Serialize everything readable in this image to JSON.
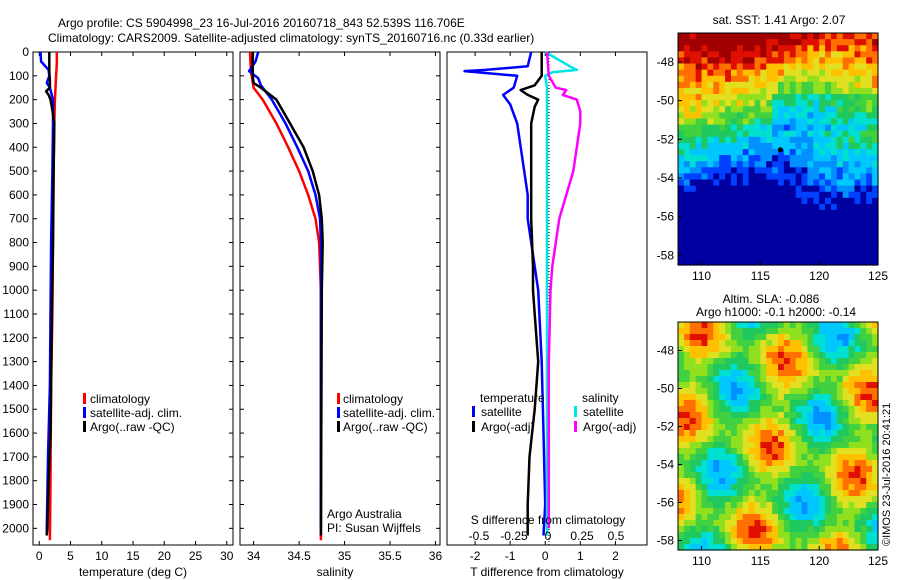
{
  "header": {
    "line1": "Argo profile: CS 5904998_23 16-Jul-2016 20160718_843 52.539S 116.706E",
    "line2": "Climatology: CARS2009. Satellite-adjusted climatology: synTS_20160716.nc (0.33d earlier)"
  },
  "credit": "©IMOS 23-Jul-2016 20:41:21",
  "colors": {
    "climatology": "#ff0000",
    "satellite": "#0000ff",
    "argo": "#000000",
    "cyan": "#00e5e5",
    "magenta": "#ff00ff"
  },
  "chart_data": [
    {
      "type": "line",
      "id": "temperature",
      "xlabel": "temperature (deg C)",
      "xlim": [
        -1,
        31
      ],
      "ylim": [
        2070,
        0
      ],
      "xticks": [
        "0",
        "5",
        "10",
        "15",
        "20",
        "25",
        "30"
      ],
      "xtick_values": [
        0,
        5,
        10,
        15,
        20,
        25,
        30
      ],
      "yticks": [
        "0",
        "100",
        "200",
        "300",
        "400",
        "500",
        "600",
        "700",
        "800",
        "900",
        "1000",
        "1100",
        "1200",
        "1300",
        "1400",
        "1500",
        "1600",
        "1700",
        "1800",
        "1900",
        "2000"
      ],
      "legend": [
        "climatology",
        "satellite-adj. clim.",
        "Argo(..raw -QC)"
      ],
      "legend_placement": "center",
      "series": [
        {
          "name": "climatology",
          "color": "#ff0000",
          "x": [
            2.8,
            2.8,
            2.7,
            2.6,
            2.5,
            2.4,
            2.3,
            2.2,
            2.1,
            1.9,
            1.8,
            1.7
          ],
          "y": [
            0,
            50,
            100,
            150,
            200,
            300,
            500,
            800,
            1100,
            1400,
            1800,
            2050
          ]
        },
        {
          "name": "satellite-adj. clim.",
          "color": "#0000ff",
          "x": [
            0.2,
            0.3,
            1.5,
            1.6,
            1.2,
            1.7,
            2.2,
            2.2,
            2.1,
            1.9,
            1.8,
            1.7,
            1.4,
            1.2,
            1.2
          ],
          "y": [
            0,
            40,
            75,
            100,
            130,
            150,
            200,
            300,
            500,
            800,
            1100,
            1400,
            1700,
            2000,
            2030
          ]
        },
        {
          "name": "Argo(..raw -QC)",
          "color": "#000000",
          "x": [
            1.6,
            1.6,
            1.7,
            1.7,
            1.1,
            1.5,
            1.8,
            2.0,
            2.2,
            2.4,
            2.3,
            2.2,
            2.0,
            1.9,
            1.8,
            1.5,
            1.3,
            1.2
          ],
          "y": [
            0,
            80,
            120,
            150,
            165,
            180,
            200,
            230,
            260,
            300,
            500,
            800,
            1100,
            1400,
            1600,
            1800,
            2000,
            2030
          ]
        }
      ]
    },
    {
      "type": "line",
      "id": "salinity",
      "xlabel": "salinity",
      "xlim": [
        33.85,
        36.05
      ],
      "ylim": [
        2070,
        0
      ],
      "xticks": [
        "34",
        "34.5",
        "35",
        "35.5",
        "36"
      ],
      "xtick_values": [
        34,
        34.5,
        35,
        35.5,
        36
      ],
      "legend": [
        "climatology",
        "satellite-adj. clim.",
        "Argo(..raw -QC)"
      ],
      "legend_placement": "bottom-right",
      "annotation": [
        "Argo Australia",
        "PI: Susan Wijffels"
      ],
      "series": [
        {
          "name": "climatology",
          "color": "#ff0000",
          "x": [
            33.96,
            33.97,
            34.0,
            34.1,
            34.25,
            34.38,
            34.5,
            34.6,
            34.68,
            34.72,
            34.74,
            34.74,
            34.74
          ],
          "y": [
            0,
            80,
            150,
            200,
            300,
            400,
            500,
            600,
            700,
            800,
            1000,
            1500,
            2050
          ]
        },
        {
          "name": "satellite-adj. clim.",
          "color": "#0000ff",
          "x": [
            34.05,
            34.02,
            33.95,
            34.05,
            34.08,
            34.2,
            34.35,
            34.48,
            34.6,
            34.68,
            34.73,
            34.74,
            34.74,
            34.74
          ],
          "y": [
            0,
            40,
            80,
            110,
            140,
            200,
            300,
            400,
            500,
            600,
            700,
            800,
            1000,
            2000
          ]
        },
        {
          "name": "Argo(..raw -QC)",
          "color": "#000000",
          "x": [
            33.99,
            33.99,
            34.0,
            34.08,
            34.25,
            34.4,
            34.55,
            34.65,
            34.72,
            34.75,
            34.76,
            34.75,
            34.74
          ],
          "y": [
            0,
            100,
            130,
            150,
            200,
            300,
            400,
            500,
            600,
            700,
            800,
            1000,
            2030
          ]
        }
      ]
    },
    {
      "type": "line",
      "id": "difference",
      "xlabel": "T difference from climatology",
      "xlim": [
        -2.8,
        2.9
      ],
      "ylim": [
        2070,
        0
      ],
      "xticks": [
        "-2",
        "-1",
        "0",
        "1",
        "2"
      ],
      "xtick_values": [
        -2,
        -1,
        0,
        1,
        2
      ],
      "top_axis_label": "S difference from climatology",
      "top_xticks": [
        "-0.5",
        "-0.25",
        "0",
        "0.25",
        "0.5"
      ],
      "legend_temperature_title": "temperature",
      "legend_salinity_title": "salinity",
      "legend_temperature": [
        "satellite",
        "Argo(-adj)"
      ],
      "legend_salinity": [
        "satellite",
        "Argo(-adj)"
      ],
      "series": [
        {
          "name": "satellite",
          "color": "#0000ff",
          "x": [
            -0.4,
            -0.5,
            -1.7,
            -2.3,
            -0.8,
            -0.9,
            -1.2,
            -1.0,
            -0.8,
            -0.7,
            -0.6,
            -0.5,
            -0.5,
            -0.4,
            -0.2,
            -0.1,
            -0.05,
            0.0,
            -0.05
          ],
          "y": [
            0,
            60,
            75,
            80,
            100,
            150,
            180,
            220,
            300,
            400,
            500,
            600,
            700,
            800,
            1000,
            1300,
            1600,
            1900,
            2030
          ]
        },
        {
          "name": "Argo(-adj)",
          "color": "#000000",
          "x": [
            -0.1,
            -0.1,
            -0.3,
            -0.7,
            -0.5,
            -0.2,
            -0.3,
            -0.4,
            -0.4,
            -0.4,
            -0.35,
            -0.35,
            -0.3,
            -0.2,
            -0.3,
            -0.45,
            -0.5,
            -0.5
          ],
          "y": [
            0,
            100,
            140,
            160,
            180,
            200,
            230,
            300,
            500,
            700,
            900,
            1000,
            1100,
            1300,
            1500,
            1700,
            1900,
            2030
          ]
        },
        {
          "name": "satellite",
          "color": "#00e5e5",
          "x": [
            0.0,
            0.7,
            0.9,
            0.2,
            0.0,
            0.05,
            0.05,
            0.05,
            0.05,
            0.05,
            0.05,
            0.05
          ],
          "y": [
            0,
            60,
            75,
            85,
            100,
            150,
            300,
            600,
            1000,
            1400,
            1800,
            2030
          ]
        },
        {
          "name": "Argo(-adj)",
          "color": "#ff00ff",
          "x": [
            0.05,
            0.1,
            0.3,
            0.6,
            0.5,
            0.9,
            1.0,
            1.0,
            0.9,
            0.8,
            0.6,
            0.4,
            0.3,
            0.2,
            0.15,
            0.1,
            0.1
          ],
          "y": [
            0,
            100,
            150,
            160,
            180,
            200,
            250,
            300,
            400,
            500,
            600,
            700,
            800,
            900,
            1000,
            1300,
            2000
          ]
        }
      ]
    },
    {
      "type": "heatmap",
      "id": "sst-map",
      "title": "sat. SST: 1.41  Argo: 2.07",
      "xlim": [
        108,
        125
      ],
      "ylim": [
        -58.5,
        -46.5
      ],
      "xticks": [
        "110",
        "115",
        "120",
        "125"
      ],
      "xtick_values": [
        110,
        115,
        120,
        125
      ],
      "yticks": [
        "-48",
        "-50",
        "-52",
        "-54",
        "-56",
        "-58"
      ],
      "ytick_values": [
        -48,
        -50,
        -52,
        -54,
        -56,
        -58
      ],
      "marker": {
        "lon": 116.706,
        "lat": -52.539
      }
    },
    {
      "type": "heatmap",
      "id": "sla-map",
      "title": "Altim. SLA: -0.086",
      "subtitle": "Argo h1000: -0.1  h2000: -0.14",
      "xlim": [
        108,
        125
      ],
      "ylim": [
        -58.5,
        -46.5
      ],
      "xticks": [
        "110",
        "115",
        "120",
        "125"
      ],
      "xtick_values": [
        110,
        115,
        120,
        125
      ],
      "yticks": [
        "-48",
        "-50",
        "-52",
        "-54",
        "-56",
        "-58"
      ],
      "ytick_values": [
        -48,
        -50,
        -52,
        -54,
        -56,
        -58
      ]
    }
  ]
}
